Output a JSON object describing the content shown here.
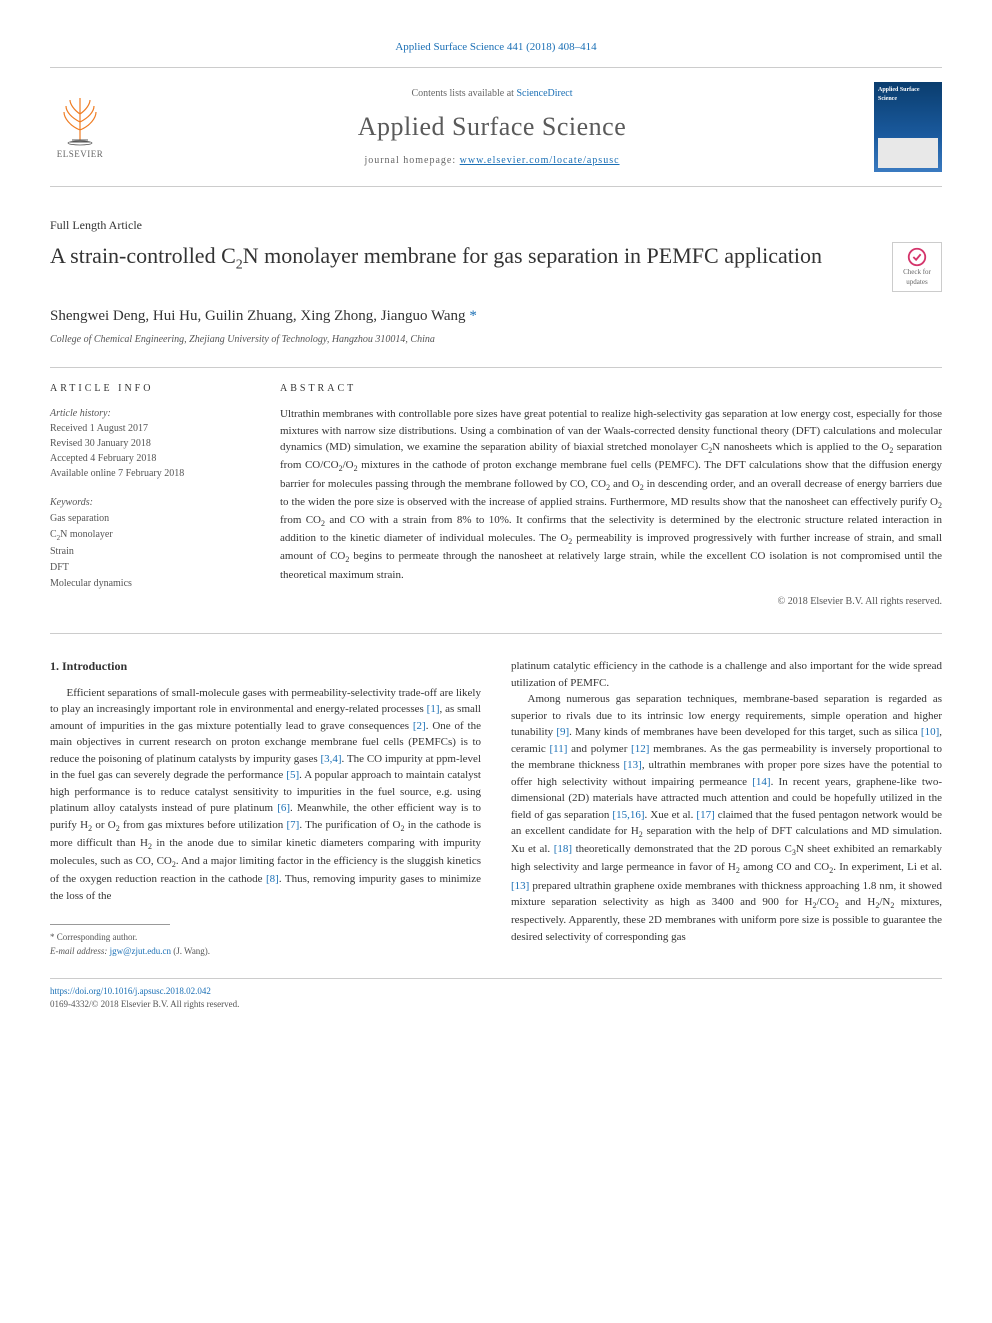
{
  "header": {
    "citation": "Applied Surface Science 441 (2018) 408–414",
    "contents_available": "Contents lists available at",
    "sciencedirect": "ScienceDirect",
    "journal_name": "Applied Surface Science",
    "homepage_label": "journal homepage:",
    "homepage_url": "www.elsevier.com/locate/apsusc",
    "publisher": "ELSEVIER",
    "cover_title": "Applied Surface Science",
    "updates_label": "Check for updates"
  },
  "article": {
    "type": "Full Length Article",
    "title_pre": "A strain-controlled C",
    "title_sub1": "2",
    "title_post": "N monolayer membrane for gas separation in PEMFC application",
    "authors_text": "Shengwei Deng, Hui Hu, Guilin Zhuang, Xing Zhong, Jianguo Wang",
    "corresp_mark": " *",
    "affiliation": "College of Chemical Engineering, Zhejiang University of Technology, Hangzhou 310014, China"
  },
  "info": {
    "heading": "ARTICLE INFO",
    "history_label": "Article history:",
    "received": "Received 1 August 2017",
    "revised": "Revised 30 January 2018",
    "accepted": "Accepted 4 February 2018",
    "online": "Available online 7 February 2018",
    "keywords_label": "Keywords:",
    "kw1": "Gas separation",
    "kw2_pre": "C",
    "kw2_sub": "2",
    "kw2_post": "N monolayer",
    "kw3": "Strain",
    "kw4": "DFT",
    "kw5": "Molecular dynamics"
  },
  "abstract": {
    "heading": "ABSTRACT",
    "text_parts": [
      "Ultrathin membranes with controllable pore sizes have great potential to realize high-selectivity gas separation at low energy cost, especially for those mixtures with narrow size distributions. Using a combination of van der Waals-corrected density functional theory (DFT) calculations and molecular dynamics (MD) simulation, we examine the separation ability of biaxial stretched monolayer C",
      "N nanosheets which is applied to the O",
      " separation from CO/CO",
      "/O",
      " mixtures in the cathode of proton exchange membrane fuel cells (PEMFC). The DFT calculations show that the diffusion energy barrier for molecules passing through the membrane followed by CO, CO",
      " and O",
      " in descending order, and an overall decrease of energy barriers due to the widen the pore size is observed with the increase of applied strains. Furthermore, MD results show that the nanosheet can effectively purify O",
      " from CO",
      " and CO with a strain from 8% to 10%. It confirms that the selectivity is determined by the electronic structure related interaction in addition to the kinetic diameter of individual molecules. The O",
      " permeability is improved progressively with further increase of strain, and small amount of CO",
      " begins to permeate through the nanosheet at relatively large strain, while the excellent CO isolation is not compromised until the theoretical maximum strain."
    ],
    "subs": [
      "2",
      "2",
      "2",
      "2",
      "2",
      "2",
      "2",
      "2",
      "2",
      "2"
    ],
    "copyright": "© 2018 Elsevier B.V. All rights reserved."
  },
  "body": {
    "intro_heading": "1. Introduction",
    "col1": {
      "p1_parts": [
        "Efficient separations of small-molecule gases with permeability-selectivity trade-off are likely to play an increasingly important role in environmental and energy-related processes ",
        ", as small amount of impurities in the gas mixture potentially lead to grave consequences ",
        ". One of the main objectives in current research on proton exchange membrane fuel cells (PEMFCs) is to reduce the poisoning of platinum catalysts by impurity gases ",
        ". The CO impurity at ppm-level in the fuel gas can severely degrade the performance ",
        ". A popular approach to maintain catalyst high performance is to reduce catalyst sensitivity to impurities in the fuel source, e.g. using platinum alloy catalysts instead of pure platinum ",
        ". Meanwhile, the other efficient way is to purify H",
        " or O",
        " from gas mixtures before utilization ",
        ". The purification of O",
        " in the cathode is more difficult than H",
        " in the anode due to similar kinetic diameters comparing with impurity molecules, such as CO, CO",
        ". And a major limiting factor in the efficiency is the sluggish kinetics of the oxygen reduction reaction in the cathode ",
        ". Thus, removing impurity gases to minimize the loss of the"
      ],
      "cites": [
        "[1]",
        "[2]",
        "[3,4]",
        "[5]",
        "[6]",
        "",
        "",
        "[7]",
        "",
        "",
        "",
        "[8]",
        ""
      ],
      "subs": [
        "",
        "",
        "",
        "",
        "",
        "2",
        "2",
        "",
        "2",
        "2",
        "2",
        "",
        ""
      ]
    },
    "col2": {
      "p1": "platinum catalytic efficiency in the cathode is a challenge and also important for the wide spread utilization of PEMFC.",
      "p2_parts": [
        "Among numerous gas separation techniques, membrane-based separation is regarded as superior to rivals due to its intrinsic low energy requirements, simple operation and higher tunability ",
        ". Many kinds of membranes have been developed for this target, such as silica ",
        ", ceramic ",
        " and polymer ",
        " membranes. As the gas permeability is inversely proportional to the membrane thickness ",
        ", ultrathin membranes with proper pore sizes have the potential to offer high selectivity without impairing permeance ",
        ". In recent years, graphene-like two-dimensional (2D) materials have attracted much attention and could be hopefully utilized in the field of gas separation ",
        ". Xue et al. ",
        " claimed that the fused pentagon network would be an excellent candidate for H",
        " separation with the help of DFT calculations and MD simulation. Xu et al. ",
        " theoretically demonstrated that the 2D porous C",
        "N sheet exhibited an remarkably high selectivity and large permeance in favor of H",
        " among CO and CO",
        ". In experiment, Li et al. ",
        " prepared ultrathin graphene oxide membranes with thickness approaching 1.8 nm, it showed mixture separation selectivity as high as 3400 and 900 for H",
        "/CO",
        " and H",
        "/N",
        " mixtures, respectively. Apparently, these 2D membranes with uniform pore size is possible to guarantee the desired selectivity of corresponding gas"
      ],
      "cites2": [
        "[9]",
        "[10]",
        "[11]",
        "[12]",
        "[13]",
        "[14]",
        "[15,16]",
        "[17]",
        "",
        "[18]",
        "",
        "",
        "",
        "[13]",
        "",
        "",
        "",
        "",
        ""
      ],
      "subs2": [
        "",
        "",
        "",
        "",
        "",
        "",
        "",
        "",
        "2",
        "",
        "3",
        "2",
        "2",
        "",
        "2",
        "2",
        "2",
        "2",
        ""
      ]
    }
  },
  "footnote": {
    "corresp_label": "* Corresponding author.",
    "email_label": "E-mail address:",
    "email": "jgw@zjut.edu.cn",
    "email_who": " (J. Wang)."
  },
  "footer": {
    "doi": "https://doi.org/10.1016/j.apsusc.2018.02.042",
    "issn_line": "0169-4332/© 2018 Elsevier B.V. All rights reserved."
  },
  "colors": {
    "link": "#1a6fb5",
    "text": "#333333",
    "muted": "#666666",
    "border": "#cccccc",
    "elsevier_orange": "#ef7c22"
  }
}
